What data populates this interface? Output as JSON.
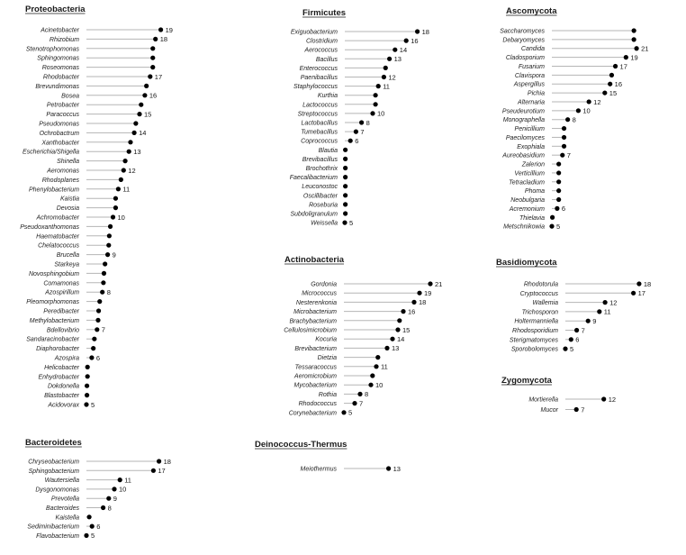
{
  "colors": {
    "line": "#b5b5b5",
    "dot": "#000000",
    "text": "#222222"
  },
  "chart_data": [
    {
      "type": "lollipop",
      "title": "Proteobacteria",
      "categories": [
        "Acinetobacter",
        "Rhizobium",
        "Stenotrophomonas",
        "Sphingomonas",
        "Roseomonas",
        "Rhodobacter",
        "Brevundimonas",
        "Bosea",
        "Petrobacter",
        "Paracoccus",
        "Pseudomonas",
        "Ochrobactrum",
        "Xanthobacter",
        "Escherichia/Shigella",
        "Shinella",
        "Aeromonas",
        "Rhodoplanes",
        "Phenylobacterium",
        "Kaistia",
        "Devosia",
        "Achromobacter",
        "Pseudoxanthomonas",
        "Haematobacter",
        "Chelatococcus",
        "Brucella",
        "Starkeya",
        "Novosphingobium",
        "Comamonas",
        "Azospirillum",
        "Pleomorphomonas",
        "Peredibacter",
        "Methylobacterium",
        "Bdellovibrio",
        "Sandaracinobacter",
        "Diaphorobacter",
        "Azospira",
        "Helicobacter",
        "Enhydrobacter",
        "Dokdonella",
        "Blastobacter",
        "Acidovorax"
      ],
      "values": [
        19,
        18,
        17.5,
        17.5,
        17.5,
        17,
        16.3,
        16,
        15.3,
        15,
        14.3,
        14,
        13.3,
        13,
        12.3,
        12,
        11.5,
        11,
        10.5,
        10.5,
        10,
        9.5,
        9.3,
        9.2,
        9,
        8.5,
        8.3,
        8.2,
        8,
        7.5,
        7.3,
        7.2,
        7,
        6.5,
        6.3,
        6,
        5.2,
        5.2,
        5.1,
        5.1,
        5
      ],
      "labels": [
        "19",
        "18",
        "",
        "",
        "",
        "17",
        "",
        "16",
        "",
        "15",
        "",
        "14",
        "",
        "13",
        "",
        "12",
        "",
        "11",
        "",
        "",
        "10",
        "",
        "",
        "",
        "9",
        "",
        "",
        "",
        "8",
        "",
        "",
        "",
        "7",
        "",
        "",
        "6",
        "",
        "",
        "",
        "",
        "5"
      ]
    },
    {
      "type": "lollipop",
      "title": "Bacteroidetes",
      "categories": [
        "Chryseobacterium",
        "Sphingobacterium",
        "Wautersiella",
        "Dysgonomonas",
        "Prevotella",
        "Bacteroides",
        "Kaistella",
        "Sediminibacterium",
        "Flavobacterium"
      ],
      "values": [
        18,
        17,
        11,
        10,
        9,
        8,
        5.5,
        6,
        5
      ],
      "labels": [
        "18",
        "17",
        "11",
        "10",
        "9",
        "8",
        "",
        "6",
        "5"
      ]
    },
    {
      "type": "lollipop",
      "title": "Firmicutes",
      "categories": [
        "Exiguobacterium",
        "Clostridium",
        "Aerococcus",
        "Bacillus",
        "Enterococcus",
        "Paenibacillus",
        "Staphylococcus",
        "Kurthia",
        "Lactococcus",
        "Streptococcus",
        "Lactobacillus",
        "Tumebacillus",
        "Coprococcus",
        "Blautia",
        "Brevibacillus",
        "Brochothrix",
        "Faecalibacterium",
        "Leuconostoc",
        "Oscillibacter",
        "Roseburia",
        "Subdoligranulum",
        "Weissella"
      ],
      "values": [
        18,
        16,
        14,
        13,
        12.3,
        12,
        11,
        10.5,
        10.5,
        10,
        8,
        7,
        6,
        5.1,
        5.1,
        5.1,
        5.1,
        5.1,
        5.1,
        5.1,
        5.1,
        5
      ],
      "labels": [
        "18",
        "16",
        "14",
        "13",
        "",
        "12",
        "11",
        "",
        "",
        "10",
        "8",
        "7",
        "6",
        "",
        "",
        "",
        "",
        "",
        "",
        "",
        "",
        "5"
      ]
    },
    {
      "type": "lollipop",
      "title": "Actinobacteria",
      "categories": [
        "Gordonia",
        "Micrococcus",
        "Nesterenkonia",
        "Microbacterium",
        "Brachybacterium",
        "Cellulosimicrobium",
        "Kocuria",
        "Brevibacterium",
        "Dietzia",
        "Tessaracoccus",
        "Aeromicrobium",
        "Mycobacterium",
        "Rothia",
        "Rhodococcus",
        "Corynebacterium"
      ],
      "values": [
        21,
        19,
        18,
        16,
        15.3,
        15,
        14,
        13,
        11.3,
        11,
        10.3,
        10,
        8,
        7,
        5
      ],
      "labels": [
        "21",
        "19",
        "18",
        "16",
        "",
        "15",
        "14",
        "13",
        "",
        "11",
        "",
        "10",
        "8",
        "7",
        "5"
      ]
    },
    {
      "type": "lollipop",
      "title": "Deinococcus-Thermus",
      "categories": [
        "Meiothermus"
      ],
      "values": [
        13
      ],
      "labels": [
        "13"
      ]
    },
    {
      "type": "lollipop",
      "title": "Ascomycota",
      "categories": [
        "Saccharomyces",
        "Debaryomyces",
        "Candida",
        "Cladosporium",
        "Fusarium",
        "Clavispora",
        "Aspergillus",
        "Pichia",
        "Alternaria",
        "Pseudeurotium",
        "Monographella",
        "Penicillium",
        "Paecilomyces",
        "Exophiala",
        "Aureobasidium",
        "Zalerion",
        "Verticillium",
        "Tetracladium",
        "Phoma",
        "Neobulgaria",
        "Acremonium",
        "Thielavia",
        "Metschnikowia"
      ],
      "values": [
        20.5,
        20.5,
        21,
        19,
        17,
        16.3,
        16,
        15,
        12,
        10,
        8,
        7.3,
        7.3,
        7.3,
        7,
        6.3,
        6.3,
        6.3,
        6.3,
        6.3,
        6,
        5.1,
        5
      ],
      "labels": [
        "",
        "",
        "21",
        "19",
        "17",
        "",
        "16",
        "15",
        "12",
        "10",
        "8",
        "",
        "",
        "",
        "7",
        "",
        "",
        "",
        "",
        "",
        "6",
        "",
        "5"
      ]
    },
    {
      "type": "lollipop",
      "title": "Basidiomycota",
      "categories": [
        "Rhodotorula",
        "Cryptococcus",
        "Wallemia",
        "Trichosporon",
        "Holtermanniella",
        "Rhodosporidium",
        "Sterigmatomyces",
        "Sporobolomyces"
      ],
      "values": [
        18,
        17,
        12,
        11,
        9,
        7,
        6,
        5
      ],
      "labels": [
        "18",
        "17",
        "12",
        "11",
        "9",
        "7",
        "6",
        "5"
      ]
    },
    {
      "type": "lollipop",
      "title": "Zygomycota",
      "categories": [
        "Mortierella",
        "Mucor"
      ],
      "values": [
        12,
        7
      ],
      "labels": [
        "12",
        "7"
      ]
    }
  ]
}
